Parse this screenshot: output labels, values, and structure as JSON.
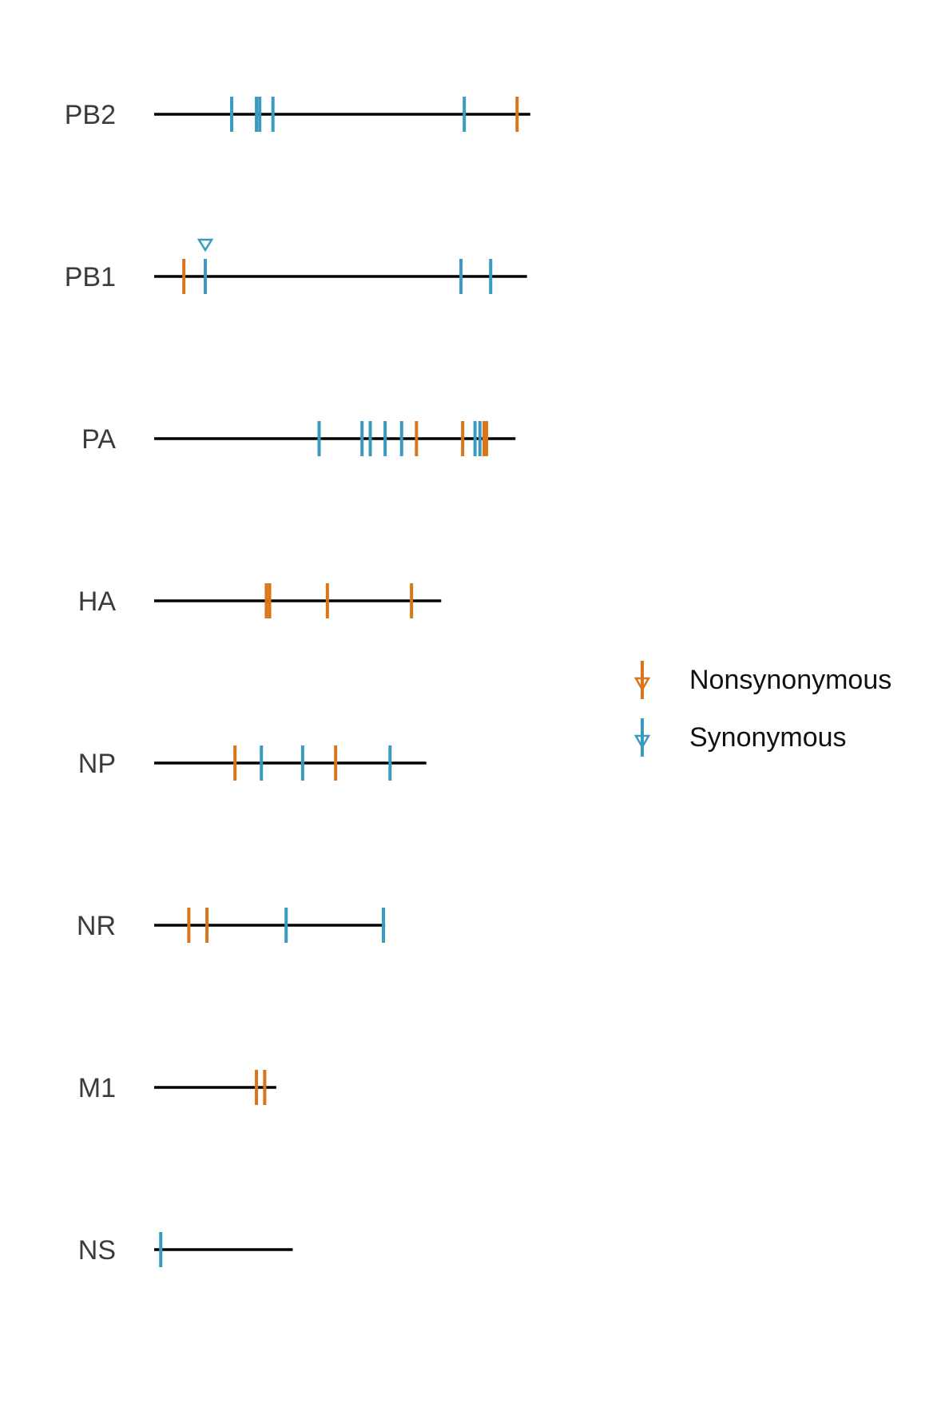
{
  "chart_data": {
    "type": "other",
    "description_free": true,
    "colors": {
      "Nonsynonymous": "#D9751B",
      "Synonymous": "#3A9BBF",
      "line": "#000000"
    },
    "legend": {
      "placement": "right",
      "entries": [
        {
          "label": "Nonsynonymous",
          "marker": "tick-with-down-triangle"
        },
        {
          "label": "Synonymous",
          "marker": "tick-with-down-triangle"
        }
      ]
    },
    "segments": [
      {
        "name": "PB2",
        "length": 2280,
        "mutations": [
          {
            "pos": 470,
            "type": "Synonymous"
          },
          {
            "pos": 620,
            "type": "Synonymous"
          },
          {
            "pos": 640,
            "type": "Synonymous"
          },
          {
            "pos": 720,
            "type": "Synonymous"
          },
          {
            "pos": 1880,
            "type": "Synonymous"
          },
          {
            "pos": 2200,
            "type": "Nonsynonymous"
          }
        ]
      },
      {
        "name": "PB1",
        "length": 2260,
        "mutations": [
          {
            "pos": 180,
            "type": "Nonsynonymous"
          },
          {
            "pos": 310,
            "type": "Synonymous",
            "marked": true
          },
          {
            "pos": 1860,
            "type": "Synonymous"
          },
          {
            "pos": 2040,
            "type": "Synonymous"
          }
        ]
      },
      {
        "name": "PA",
        "length": 2190,
        "mutations": [
          {
            "pos": 1000,
            "type": "Synonymous"
          },
          {
            "pos": 1260,
            "type": "Synonymous"
          },
          {
            "pos": 1310,
            "type": "Synonymous"
          },
          {
            "pos": 1400,
            "type": "Synonymous"
          },
          {
            "pos": 1500,
            "type": "Synonymous"
          },
          {
            "pos": 1590,
            "type": "Nonsynonymous"
          },
          {
            "pos": 1870,
            "type": "Nonsynonymous"
          },
          {
            "pos": 1945,
            "type": "Synonymous"
          },
          {
            "pos": 1975,
            "type": "Synonymous"
          },
          {
            "pos": 2000,
            "type": "Nonsynonymous"
          },
          {
            "pos": 2015,
            "type": "Nonsynonymous"
          }
        ]
      },
      {
        "name": "HA",
        "length": 1740,
        "mutations": [
          {
            "pos": 680,
            "type": "Nonsynonymous"
          },
          {
            "pos": 700,
            "type": "Nonsynonymous"
          },
          {
            "pos": 1050,
            "type": "Nonsynonymous"
          },
          {
            "pos": 1560,
            "type": "Nonsynonymous"
          }
        ]
      },
      {
        "name": "NP",
        "length": 1650,
        "mutations": [
          {
            "pos": 490,
            "type": "Nonsynonymous"
          },
          {
            "pos": 650,
            "type": "Synonymous"
          },
          {
            "pos": 900,
            "type": "Synonymous"
          },
          {
            "pos": 1100,
            "type": "Nonsynonymous"
          },
          {
            "pos": 1430,
            "type": "Synonymous"
          }
        ]
      },
      {
        "name": "NR",
        "length": 1400,
        "mutations": [
          {
            "pos": 210,
            "type": "Nonsynonymous"
          },
          {
            "pos": 320,
            "type": "Nonsynonymous"
          },
          {
            "pos": 800,
            "type": "Synonymous"
          },
          {
            "pos": 1390,
            "type": "Synonymous"
          }
        ]
      },
      {
        "name": "M1",
        "length": 740,
        "mutations": [
          {
            "pos": 620,
            "type": "Nonsynonymous"
          },
          {
            "pos": 670,
            "type": "Nonsynonymous"
          }
        ]
      },
      {
        "name": "NS",
        "length": 840,
        "mutations": [
          {
            "pos": 40,
            "type": "Synonymous"
          }
        ]
      }
    ]
  }
}
